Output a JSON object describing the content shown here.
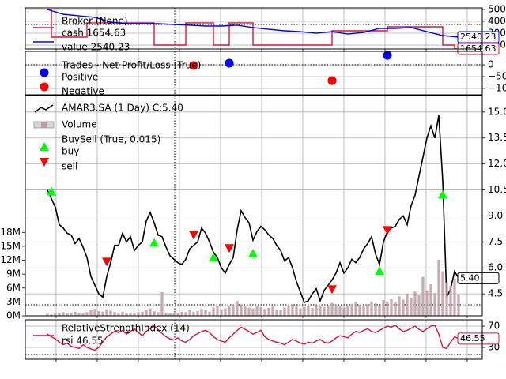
{
  "chart_data": [
    {
      "type": "line",
      "label": "Broker (None)",
      "xlim": [
        -5.6,
        110
      ],
      "ylim": [
        167,
        513
      ],
      "yticks": [
        500,
        400,
        300,
        200
      ],
      "grid": true,
      "series": [
        {
          "name": "cash 1654.63",
          "color": "#dc143c",
          "marker": "line",
          "end_label": "1654.63",
          "x": [
            0,
            1,
            1,
            10,
            10,
            27,
            27,
            35,
            35,
            42,
            42,
            46,
            46,
            52,
            52,
            72,
            72,
            86,
            86,
            100,
            100,
            103,
            103,
            104
          ],
          "values": [
            500,
            500,
            267,
            267,
            387,
            387,
            200,
            200,
            387,
            387,
            200,
            200,
            387,
            387,
            200,
            200,
            320,
            320,
            353,
            353,
            200,
            200,
            167,
            167
          ]
        },
        {
          "name": "value 2540.23",
          "color": "#0000ff",
          "marker": "line",
          "end_label": "2540.23",
          "x": [
            0,
            4,
            8,
            12,
            16,
            20,
            24,
            28,
            32,
            36,
            40,
            44,
            48,
            52,
            56,
            60,
            64,
            68,
            72,
            76,
            80,
            84,
            88,
            92,
            96,
            100,
            104
          ],
          "values": [
            500,
            460,
            446,
            433,
            393,
            380,
            380,
            380,
            373,
            367,
            360,
            360,
            367,
            347,
            333,
            320,
            313,
            300,
            313,
            293,
            307,
            340,
            340,
            347,
            313,
            280,
            267
          ]
        }
      ]
    },
    {
      "type": "scatter",
      "label": "Trades - Net Profit/Loss (True)",
      "xlim": [
        -5.6,
        110
      ],
      "ylim": [
        -127,
        57
      ],
      "yticks": [
        0,
        {
          "value": -50,
          "label": "−50"
        },
        {
          "value": -100,
          "label": "−100"
        }
      ],
      "grid": true,
      "series": [
        {
          "name": "Positive",
          "color": "#0000ff",
          "marker": "o",
          "x": [
            46,
            86
          ],
          "values": [
            7,
            40
          ]
        },
        {
          "name": "Negative",
          "color": "#ff0000",
          "marker": "o",
          "x": [
            37,
            72
          ],
          "values": [
            -3,
            -67
          ]
        }
      ]
    },
    {
      "type": "line",
      "xlim": [
        -5.6,
        110
      ],
      "ylim": [
        3.23,
        15.95
      ],
      "group_label": "BuySell (True, 0.015)",
      "yticks": [
        {
          "value": 15,
          "label": "15.0"
        },
        {
          "value": 13.5,
          "label": "13.5"
        },
        {
          "value": 12,
          "label": "12.0"
        },
        {
          "value": 10.5,
          "label": "10.5"
        },
        {
          "value": 9,
          "label": "9.0"
        },
        7.5,
        {
          "value": 6,
          "label": "6.0"
        },
        4.5
      ],
      "y2lim": [
        0,
        47.5
      ],
      "y2ticks": [
        {
          "value": 0,
          "label": "0M"
        },
        {
          "value": 3,
          "label": "3M"
        },
        {
          "value": 6,
          "label": "6M"
        },
        {
          "value": 9,
          "label": "9M"
        },
        {
          "value": 12,
          "label": "12M"
        },
        {
          "value": 15,
          "label": "15M"
        },
        {
          "value": 18,
          "label": "18M"
        }
      ],
      "grid": true,
      "series": [
        {
          "name": "AMAR3.SA (1 Day) C:5.40",
          "color": "#000000",
          "marker": "line",
          "end_label": "5.40",
          "values": [
            10.5,
            10.0,
            9.5,
            8.5,
            8.3,
            8.0,
            7.9,
            7.4,
            7.7,
            7.2,
            6.6,
            5.5,
            5.0,
            4.5,
            4.3,
            5.5,
            6.3,
            7.3,
            7.3,
            8.0,
            7.5,
            7.8,
            7.0,
            7.3,
            7.5,
            8.7,
            9.2,
            8.6,
            7.9,
            7.8,
            7.2,
            6.7,
            6.5,
            6.3,
            6.2,
            6.5,
            7.1,
            7.3,
            7.5,
            8.3,
            8.0,
            7.5,
            6.9,
            6.6,
            6.0,
            5.7,
            6.2,
            6.6,
            8.2,
            9.3,
            8.9,
            8.6,
            7.6,
            8.1,
            8.4,
            8.2,
            7.9,
            7.7,
            7.3,
            7.0,
            6.4,
            6.6,
            6.0,
            5.2,
            4.6,
            4.0,
            4.1,
            4.5,
            4.8,
            4.1,
            4.7,
            5.0,
            5.3,
            5.7,
            6.3,
            5.7,
            6.0,
            6.5,
            6.3,
            6.6,
            7.1,
            7.4,
            7.8,
            6.8,
            6.2,
            7.5,
            8.1,
            8.3,
            8.4,
            8.8,
            9.0,
            8.5,
            9.6,
            10.2,
            11.3,
            12.4,
            13.5,
            14.2,
            13.5,
            14.8,
            11.0,
            4.3,
            4.8,
            5.8,
            5.4
          ]
        },
        {
          "name": "Volume",
          "color": "#bf9aa4",
          "marker": "bar",
          "axis": "y2",
          "values": [
            0.4,
            0.3,
            0.5,
            0.6,
            0.8,
            0.5,
            0.7,
            0.9,
            0.6,
            0.5,
            0.8,
            1.2,
            1.5,
            1.0,
            0.9,
            1.4,
            1.1,
            0.8,
            0.7,
            0.9,
            0.6,
            0.7,
            0.5,
            0.8,
            0.9,
            1.3,
            1.6,
            1.0,
            0.8,
            5.1,
            0.7,
            0.6,
            0.5,
            0.7,
            0.9,
            0.8,
            1.2,
            0.9,
            1.0,
            1.5,
            1.2,
            0.9,
            1.8,
            2.1,
            1.4,
            1.6,
            2.0,
            2.4,
            3.2,
            2.5,
            2.0,
            1.8,
            1.6,
            2.2,
            1.9,
            1.5,
            1.7,
            2.0,
            1.4,
            1.2,
            1.8,
            2.1,
            2.5,
            2.0,
            1.6,
            1.9,
            2.2,
            1.7,
            2.4,
            2.1,
            1.9,
            2.3,
            2.8,
            2.4,
            2.0,
            1.8,
            2.1,
            2.6,
            3.0,
            2.4,
            2.0,
            2.5,
            3.1,
            2.7,
            2.2,
            3.4,
            2.9,
            3.6,
            3.0,
            4.2,
            3.5,
            4.8,
            3.9,
            5.2,
            4.4,
            8.4,
            5.5,
            6.8,
            4.9,
            12.1,
            9.6,
            7.2,
            6.5,
            8.0,
            4.6
          ]
        },
        {
          "name": "buy",
          "color": "#00ff00",
          "marker": "^",
          "x": [
            1,
            27,
            42,
            52,
            84,
            100
          ],
          "values": [
            10.41,
            7.45,
            6.59,
            6.82,
            5.82,
            10.23
          ]
        },
        {
          "name": "sell",
          "color": "#ff0000",
          "marker": "v",
          "x": [
            15,
            37,
            46,
            72,
            86
          ],
          "values": [
            6.36,
            7.91,
            7.14,
            4.77,
            8.18
          ]
        }
      ]
    },
    {
      "type": "line",
      "label": "RelativeStrengthIndex (14)",
      "xlim": [
        -5.6,
        110
      ],
      "ylim": [
        7.8,
        81.9
      ],
      "yticks": [
        70,
        30
      ],
      "grid": true,
      "series": [
        {
          "name": "rsi 46.55",
          "color": "#dc143c",
          "marker": "line",
          "end_label": "46.55",
          "values": [
            55,
            50,
            46,
            40,
            35,
            38,
            32,
            30,
            28,
            35,
            30,
            27,
            25,
            30,
            40,
            50,
            55,
            60,
            58,
            62,
            55,
            60,
            65,
            58,
            52,
            60,
            66,
            70,
            64,
            56,
            50,
            46,
            44,
            48,
            42,
            40,
            45,
            52,
            56,
            60,
            62,
            58,
            50,
            45,
            42,
            40,
            48,
            55,
            62,
            68,
            64,
            60,
            55,
            58,
            62,
            50,
            45,
            42,
            40,
            38,
            35,
            40,
            45,
            42,
            38,
            36,
            40,
            38,
            42,
            45,
            40,
            38,
            42,
            48,
            52,
            50,
            48,
            55,
            60,
            58,
            62,
            65,
            60,
            58,
            62,
            66,
            70,
            68,
            72,
            65,
            60,
            62,
            66,
            70,
            64,
            60,
            65,
            70,
            72,
            55,
            30,
            28,
            40,
            50,
            46.55
          ]
        }
      ]
    }
  ]
}
